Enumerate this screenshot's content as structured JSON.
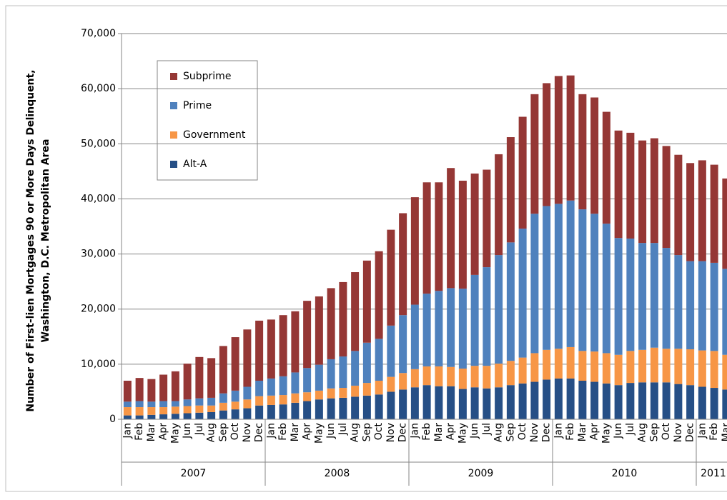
{
  "chart_data": {
    "type": "stacked_bar",
    "y_label": [
      "Number of First-lien Mortgages 90 or More Days Delinquent,",
      "Washington, D.C. Metropolitan Area"
    ],
    "categories": [
      "Jan",
      "Feb",
      "Mar",
      "Apr",
      "May",
      "Jun",
      "Jul",
      "Aug",
      "Sep",
      "Oct",
      "Nov",
      "Dec",
      "Jan",
      "Feb",
      "Mar",
      "Apr",
      "May",
      "Jun",
      "Jul",
      "Aug",
      "Sep",
      "Oct",
      "Nov",
      "Dec",
      "Jan",
      "Feb",
      "Mar",
      "Apr",
      "May",
      "Jun",
      "Jul",
      "Aug",
      "Sep",
      "Oct",
      "Nov",
      "Dec",
      "Jan",
      "Feb",
      "Mar",
      "Apr",
      "May",
      "Jun",
      "Jul",
      "Aug",
      "Sep",
      "Oct",
      "Nov",
      "Dec",
      "Jan",
      "Feb",
      "Mar"
    ],
    "x_groups": [
      "2007",
      "2008",
      "2009",
      "2010",
      "2011"
    ],
    "series": [
      {
        "name": "Alt-A",
        "color": "#264f86",
        "values": [
          700,
          700,
          800,
          900,
          1000,
          1100,
          1200,
          1300,
          1600,
          1800,
          2000,
          2500,
          2600,
          2700,
          3000,
          3300,
          3600,
          3800,
          3900,
          4100,
          4300,
          4500,
          5000,
          5400,
          5800,
          6200,
          6000,
          6000,
          5500,
          5800,
          5600,
          5800,
          6200,
          6500,
          6800,
          7200,
          7400,
          7400,
          7000,
          6800,
          6500,
          6200,
          6600,
          6700,
          6700,
          6700,
          6400,
          6200,
          5900,
          5700,
          5400
        ]
      },
      {
        "name": "Government",
        "color": "#f79646",
        "values": [
          1500,
          1500,
          1400,
          1300,
          1300,
          1300,
          1300,
          1200,
          1400,
          1400,
          1600,
          1700,
          1700,
          1700,
          1700,
          1600,
          1600,
          1800,
          1800,
          2000,
          2300,
          2500,
          2700,
          3000,
          3300,
          3400,
          3600,
          3500,
          3700,
          3900,
          4100,
          4300,
          4400,
          4700,
          5200,
          5400,
          5400,
          5700,
          5400,
          5500,
          5500,
          5500,
          5800,
          5900,
          6300,
          6100,
          6400,
          6500,
          6600,
          6700,
          6300
        ]
      },
      {
        "name": "Prime",
        "color": "#4f81bd",
        "values": [
          1000,
          1100,
          1000,
          1100,
          1000,
          1200,
          1300,
          1400,
          1700,
          2000,
          2300,
          2800,
          3100,
          3400,
          3800,
          4400,
          4700,
          5300,
          5700,
          6300,
          7300,
          7600,
          9300,
          10500,
          11700,
          13200,
          13700,
          14300,
          14500,
          16500,
          17900,
          19700,
          21500,
          23400,
          25300,
          26100,
          26300,
          26600,
          25700,
          25000,
          23500,
          21200,
          20400,
          19400,
          19000,
          18300,
          17000,
          16000,
          16200,
          16000,
          15600
        ]
      },
      {
        "name": "Subprime",
        "color": "#953735",
        "values": [
          3800,
          4200,
          4100,
          4800,
          5400,
          6500,
          7500,
          7200,
          8600,
          9700,
          10400,
          10900,
          10700,
          11100,
          11100,
          12200,
          12400,
          12900,
          13500,
          14300,
          14900,
          15900,
          17400,
          18500,
          19500,
          20200,
          19700,
          21800,
          19600,
          18400,
          17700,
          18300,
          19100,
          20300,
          21700,
          22300,
          23200,
          22700,
          20900,
          21100,
          20300,
          19500,
          19200,
          18600,
          19000,
          18500,
          18200,
          17800,
          18300,
          17800,
          16400
        ]
      }
    ],
    "ylim": [
      0,
      70000
    ],
    "yticks": [
      0,
      {
        "value": 10000,
        "label": "10,000"
      },
      {
        "value": 20000,
        "label": "20,000"
      },
      {
        "value": 30000,
        "label": "30,000"
      },
      {
        "value": 40000,
        "label": "40,000"
      },
      {
        "value": 50000,
        "label": "50,000"
      },
      {
        "value": 60000,
        "label": "60,000"
      },
      {
        "value": 70000,
        "label": "70,000"
      }
    ],
    "grid": true
  }
}
